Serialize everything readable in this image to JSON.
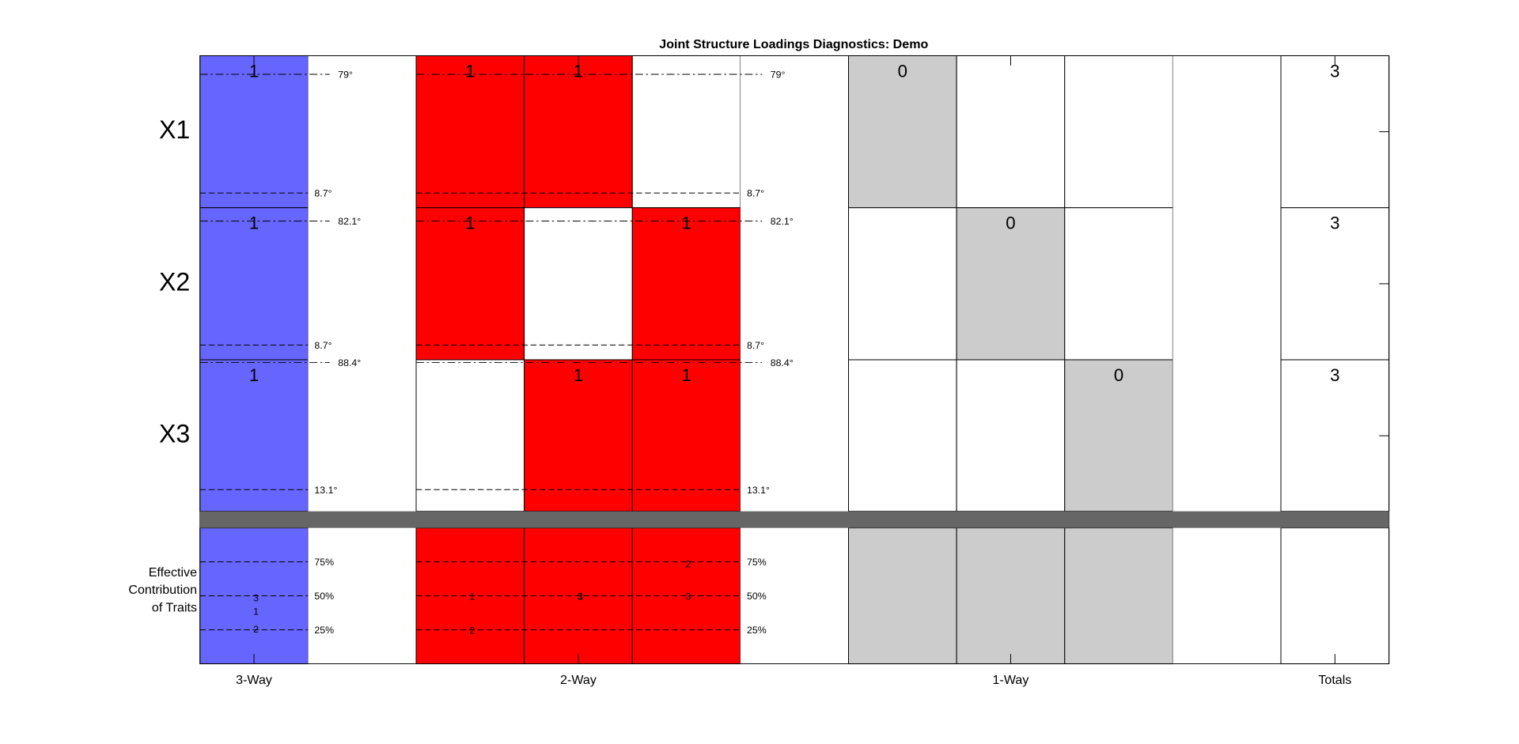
{
  "title": "Joint Structure Loadings Diagnostics: Demo",
  "rows": [
    "X1",
    "X2",
    "X3"
  ],
  "bottom_label": [
    "Effective",
    "Contribution",
    "of Traits"
  ],
  "groups": [
    "3-Way",
    "2-Way",
    "1-Way",
    "Totals"
  ],
  "columns": [
    {
      "fills": [
        "#6666ff",
        "#6666ff",
        "#6666ff",
        "#6666ff"
      ],
      "counts": [
        1,
        1,
        1
      ],
      "contributions": [
        {
          "label": "3",
          "value": 48
        },
        {
          "label": "1",
          "value": 38
        },
        {
          "label": "2",
          "value": 25
        }
      ]
    },
    {
      "fills": [
        "#ffffff",
        "#ffffff",
        "#ffffff",
        "#ffffff"
      ],
      "counts": [
        null,
        null,
        null
      ],
      "contributions": []
    },
    {
      "fills": [
        "#ff0000",
        "#ff0000",
        "#ffffff",
        "#ff0000"
      ],
      "counts": [
        1,
        1,
        null
      ],
      "contributions": [
        {
          "label": "1",
          "value": 49
        },
        {
          "label": "2",
          "value": 24
        }
      ]
    },
    {
      "fills": [
        "#ff0000",
        "#ffffff",
        "#ff0000",
        "#ff0000"
      ],
      "counts": [
        1,
        null,
        1
      ],
      "contributions": [
        {
          "label": "1",
          "value": 49
        },
        {
          "label": "3",
          "value": 49
        }
      ]
    },
    {
      "fills": [
        "#ffffff",
        "#ff0000",
        "#ff0000",
        "#ff0000"
      ],
      "counts": [
        null,
        1,
        1
      ],
      "contributions": [
        {
          "label": "2",
          "value": 73
        },
        {
          "label": "3",
          "value": 49
        }
      ]
    },
    {
      "fills": [
        "#ffffff",
        "#ffffff",
        "#ffffff",
        "#ffffff"
      ],
      "counts": [
        null,
        null,
        null
      ],
      "contributions": []
    },
    {
      "fills": [
        "#cccccc",
        "#ffffff",
        "#ffffff",
        "#cccccc"
      ],
      "counts": [
        0,
        null,
        null
      ],
      "contributions": []
    },
    {
      "fills": [
        "#ffffff",
        "#cccccc",
        "#ffffff",
        "#cccccc"
      ],
      "counts": [
        null,
        0,
        null
      ],
      "contributions": []
    },
    {
      "fills": [
        "#ffffff",
        "#ffffff",
        "#cccccc",
        "#cccccc"
      ],
      "counts": [
        null,
        null,
        0
      ],
      "contributions": []
    },
    {
      "fills": [
        "#ffffff",
        "#ffffff",
        "#ffffff",
        "#ffffff"
      ],
      "counts": [
        null,
        null,
        null
      ],
      "contributions": []
    },
    {
      "fills": [
        "#ffffff",
        "#ffffff",
        "#ffffff",
        "#ffffff"
      ],
      "counts": [
        3,
        3,
        3
      ],
      "contributions": []
    }
  ],
  "angle_sets": [
    {
      "rows": [
        [
          {
            "value": 79,
            "label": "79°"
          },
          {
            "value": 8.7,
            "label": "8.7°"
          }
        ],
        [
          {
            "value": 82.1,
            "label": "82.1°"
          },
          {
            "value": 8.7,
            "label": "8.7°"
          }
        ],
        [
          {
            "value": 88.4,
            "label": "88.4°"
          },
          {
            "value": 13.1,
            "label": "13.1°"
          }
        ]
      ],
      "percent_ticks": [
        {
          "value": 75,
          "label": "75%"
        },
        {
          "value": 50,
          "label": "50%"
        },
        {
          "value": 25,
          "label": "25%"
        }
      ]
    },
    {
      "rows": [
        [
          {
            "value": 79,
            "label": "79°"
          },
          {
            "value": 8.7,
            "label": "8.7°"
          }
        ],
        [
          {
            "value": 82.1,
            "label": "82.1°"
          },
          {
            "value": 8.7,
            "label": "8.7°"
          }
        ],
        [
          {
            "value": 88.4,
            "label": "88.4°"
          },
          {
            "value": 13.1,
            "label": "13.1°"
          }
        ]
      ],
      "percent_ticks": [
        {
          "value": 75,
          "label": "75%"
        },
        {
          "value": 50,
          "label": "50%"
        },
        {
          "value": 25,
          "label": "25%"
        }
      ]
    }
  ]
}
